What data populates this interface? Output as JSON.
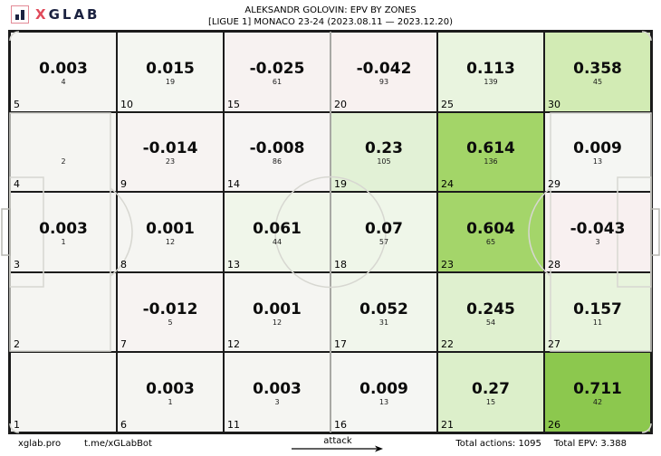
{
  "header": {
    "logo_first": "X",
    "logo_rest": "GLAB",
    "title": "ALEKSANDR GOLOVIN: EPV BY ZONES",
    "subtitle": "[LIGUE 1] MONACO 23-24 (2023.08.11 — 2023.12.20)"
  },
  "chart_data": {
    "type": "heatmap",
    "title": "ALEKSANDR GOLOVIN: EPV BY ZONES",
    "subtitle": "[LIGUE 1] MONACO 23-24 (2023.08.11 — 2023.12.20)",
    "layout": "6 columns x 5 rows football pitch zone grid, attack direction left to right",
    "legend_position": "none",
    "grid": "on",
    "zones": [
      {
        "zone": 5,
        "epv": "0.003",
        "count": "4",
        "bg": "#f5f5f2"
      },
      {
        "zone": 10,
        "epv": "0.015",
        "count": "19",
        "bg": "#f4f6f1"
      },
      {
        "zone": 15,
        "epv": "-0.025",
        "count": "61",
        "bg": "#f7f2f1"
      },
      {
        "zone": 20,
        "epv": "-0.042",
        "count": "93",
        "bg": "#f8f1f0"
      },
      {
        "zone": 25,
        "epv": "0.113",
        "count": "139",
        "bg": "#e9f4df"
      },
      {
        "zone": 30,
        "epv": "0.358",
        "count": "45",
        "bg": "#d2ebb4"
      },
      {
        "zone": 4,
        "epv": "",
        "count": "2",
        "bg": "#f5f5f2"
      },
      {
        "zone": 9,
        "epv": "-0.014",
        "count": "23",
        "bg": "#f7f3f2"
      },
      {
        "zone": 14,
        "epv": "-0.008",
        "count": "86",
        "bg": "#f6f4f3"
      },
      {
        "zone": 19,
        "epv": "0.23",
        "count": "105",
        "bg": "#e2f1d6"
      },
      {
        "zone": 24,
        "epv": "0.614",
        "count": "136",
        "bg": "#a3d568"
      },
      {
        "zone": 29,
        "epv": "0.009",
        "count": "13",
        "bg": "#f5f6f3"
      },
      {
        "zone": 3,
        "epv": "0.003",
        "count": "1",
        "bg": "#f5f5f2"
      },
      {
        "zone": 8,
        "epv": "0.001",
        "count": "12",
        "bg": "#f5f5f2"
      },
      {
        "zone": 13,
        "epv": "0.061",
        "count": "44",
        "bg": "#f0f6ea"
      },
      {
        "zone": 18,
        "epv": "0.07",
        "count": "57",
        "bg": "#eff6e9"
      },
      {
        "zone": 23,
        "epv": "0.604",
        "count": "65",
        "bg": "#a4d56a"
      },
      {
        "zone": 28,
        "epv": "-0.043",
        "count": "3",
        "bg": "#f8f0f0"
      },
      {
        "zone": 2,
        "epv": "",
        "count": "",
        "bg": "#f5f5f2"
      },
      {
        "zone": 7,
        "epv": "-0.012",
        "count": "5",
        "bg": "#f7f3f2"
      },
      {
        "zone": 12,
        "epv": "0.001",
        "count": "12",
        "bg": "#f5f5f2"
      },
      {
        "zone": 17,
        "epv": "0.052",
        "count": "31",
        "bg": "#f1f6ec"
      },
      {
        "zone": 22,
        "epv": "0.245",
        "count": "54",
        "bg": "#dff0cf"
      },
      {
        "zone": 27,
        "epv": "0.157",
        "count": "11",
        "bg": "#e8f4dd"
      },
      {
        "zone": 1,
        "epv": "",
        "count": "",
        "bg": "#f5f5f2"
      },
      {
        "zone": 6,
        "epv": "0.003",
        "count": "1",
        "bg": "#f5f5f2"
      },
      {
        "zone": 11,
        "epv": "0.003",
        "count": "3",
        "bg": "#f5f5f2"
      },
      {
        "zone": 16,
        "epv": "0.009",
        "count": "13",
        "bg": "#f5f6f3"
      },
      {
        "zone": 21,
        "epv": "0.27",
        "count": "15",
        "bg": "#dcefca"
      },
      {
        "zone": 26,
        "epv": "0.711",
        "count": "42",
        "bg": "#8cc84e"
      }
    ]
  },
  "footer": {
    "site": "xglab.pro",
    "bot": "t.me/xGLabBot",
    "attack_label": "attack",
    "total_actions": "Total actions: 1095",
    "total_epv": "Total EPV: 3.388"
  },
  "colors": {
    "grid_line": "#1b1b1b",
    "pitch_line": "#d7d7d1",
    "goal_line": "#b8b8b2",
    "logo_accent": "#e04a5a",
    "logo_navy": "#1b2240",
    "heat_max_green": "#8cc84e",
    "heat_negative_pink": "#f8f0f0"
  }
}
